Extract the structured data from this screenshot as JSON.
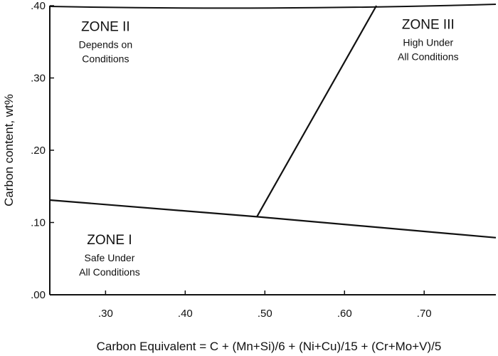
{
  "chart_data": {
    "type": "line",
    "xlabel": "Carbon Equivalent = C + (Mn+Si)/6 + (Ni+Cu)/15 + (Cr+Mo+V)/5",
    "ylabel": "Carbon content, wt%",
    "xlim": [
      0.23,
      0.79
    ],
    "ylim": [
      0.0,
      0.4
    ],
    "x_ticks": [
      {
        "value": 0.3,
        "label": ".30"
      },
      {
        "value": 0.4,
        "label": ".40"
      },
      {
        "value": 0.5,
        "label": ".50"
      },
      {
        "value": 0.6,
        "label": ".60"
      },
      {
        "value": 0.7,
        "label": ".70"
      }
    ],
    "y_ticks": [
      {
        "value": 0.0,
        "label": ".00"
      },
      {
        "value": 0.1,
        "label": ".10"
      },
      {
        "value": 0.2,
        "label": ".20"
      },
      {
        "value": 0.3,
        "label": ".30"
      },
      {
        "value": 0.4,
        "label": ".40"
      }
    ],
    "grid": false,
    "legend": "none",
    "series": [
      {
        "id": "lower-boundary",
        "points": [
          [
            0.23,
            0.131
          ],
          [
            0.49,
            0.108
          ],
          [
            0.79,
            0.079
          ]
        ]
      },
      {
        "id": "zone-divider",
        "points": [
          [
            0.49,
            0.108
          ],
          [
            0.64,
            0.4
          ]
        ]
      }
    ],
    "annotations": [
      {
        "id": "zone-1",
        "x": 0.305,
        "y": 0.07,
        "title": "ZONE I",
        "lines": [
          "Safe Under",
          "All Conditions"
        ]
      },
      {
        "id": "zone-2",
        "x": 0.3,
        "y": 0.365,
        "title": "ZONE II",
        "lines": [
          "Depends on",
          "Conditions"
        ]
      },
      {
        "id": "zone-3",
        "x": 0.705,
        "y": 0.368,
        "title": "ZONE III",
        "lines": [
          "High Under",
          "All Conditions"
        ]
      }
    ]
  }
}
